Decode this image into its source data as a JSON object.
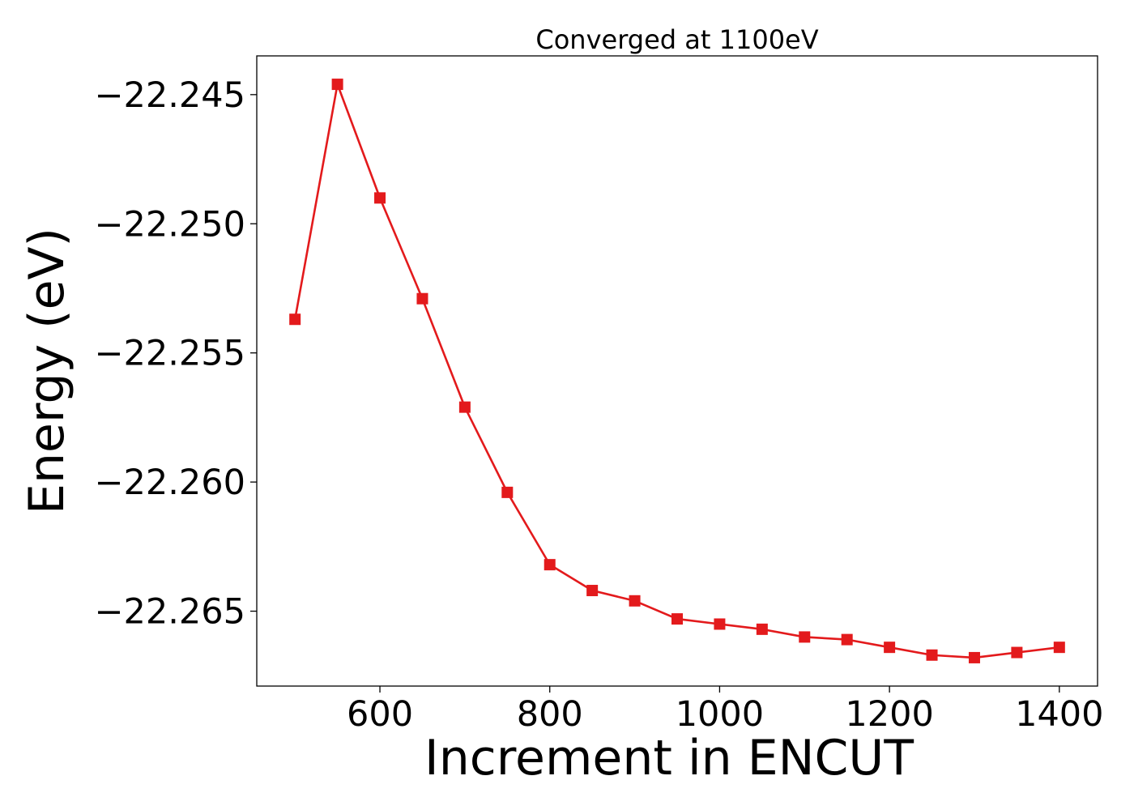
{
  "chart_data": {
    "type": "line",
    "title": "Converged at 1100eV",
    "xlabel": "Increment in ENCUT",
    "ylabel": "Energy (eV)",
    "xlim": [
      455,
      1445
    ],
    "ylim": [
      -22.2679,
      -22.2435
    ],
    "x_ticks": [
      600,
      800,
      1000,
      1200,
      1400
    ],
    "x_tick_labels": [
      "600",
      "800",
      "1000",
      "1200",
      "1400"
    ],
    "y_ticks": [
      -22.245,
      -22.25,
      -22.255,
      -22.26,
      -22.265
    ],
    "y_tick_labels": [
      "−22.245",
      "−22.250",
      "−22.255",
      "−22.260",
      "−22.265"
    ],
    "grid": false,
    "series": [
      {
        "color": "#e31a1c",
        "marker": "square",
        "x": [
          500,
          550,
          600,
          650,
          700,
          750,
          800,
          850,
          900,
          950,
          1000,
          1050,
          1100,
          1150,
          1200,
          1250,
          1300,
          1350,
          1400
        ],
        "y": [
          -22.2537,
          -22.2446,
          -22.249,
          -22.2529,
          -22.2571,
          -22.2604,
          -22.2632,
          -22.2642,
          -22.2646,
          -22.2653,
          -22.2655,
          -22.2657,
          -22.266,
          -22.2661,
          -22.2664,
          -22.2667,
          -22.2668,
          -22.2666,
          -22.2664
        ]
      }
    ]
  }
}
